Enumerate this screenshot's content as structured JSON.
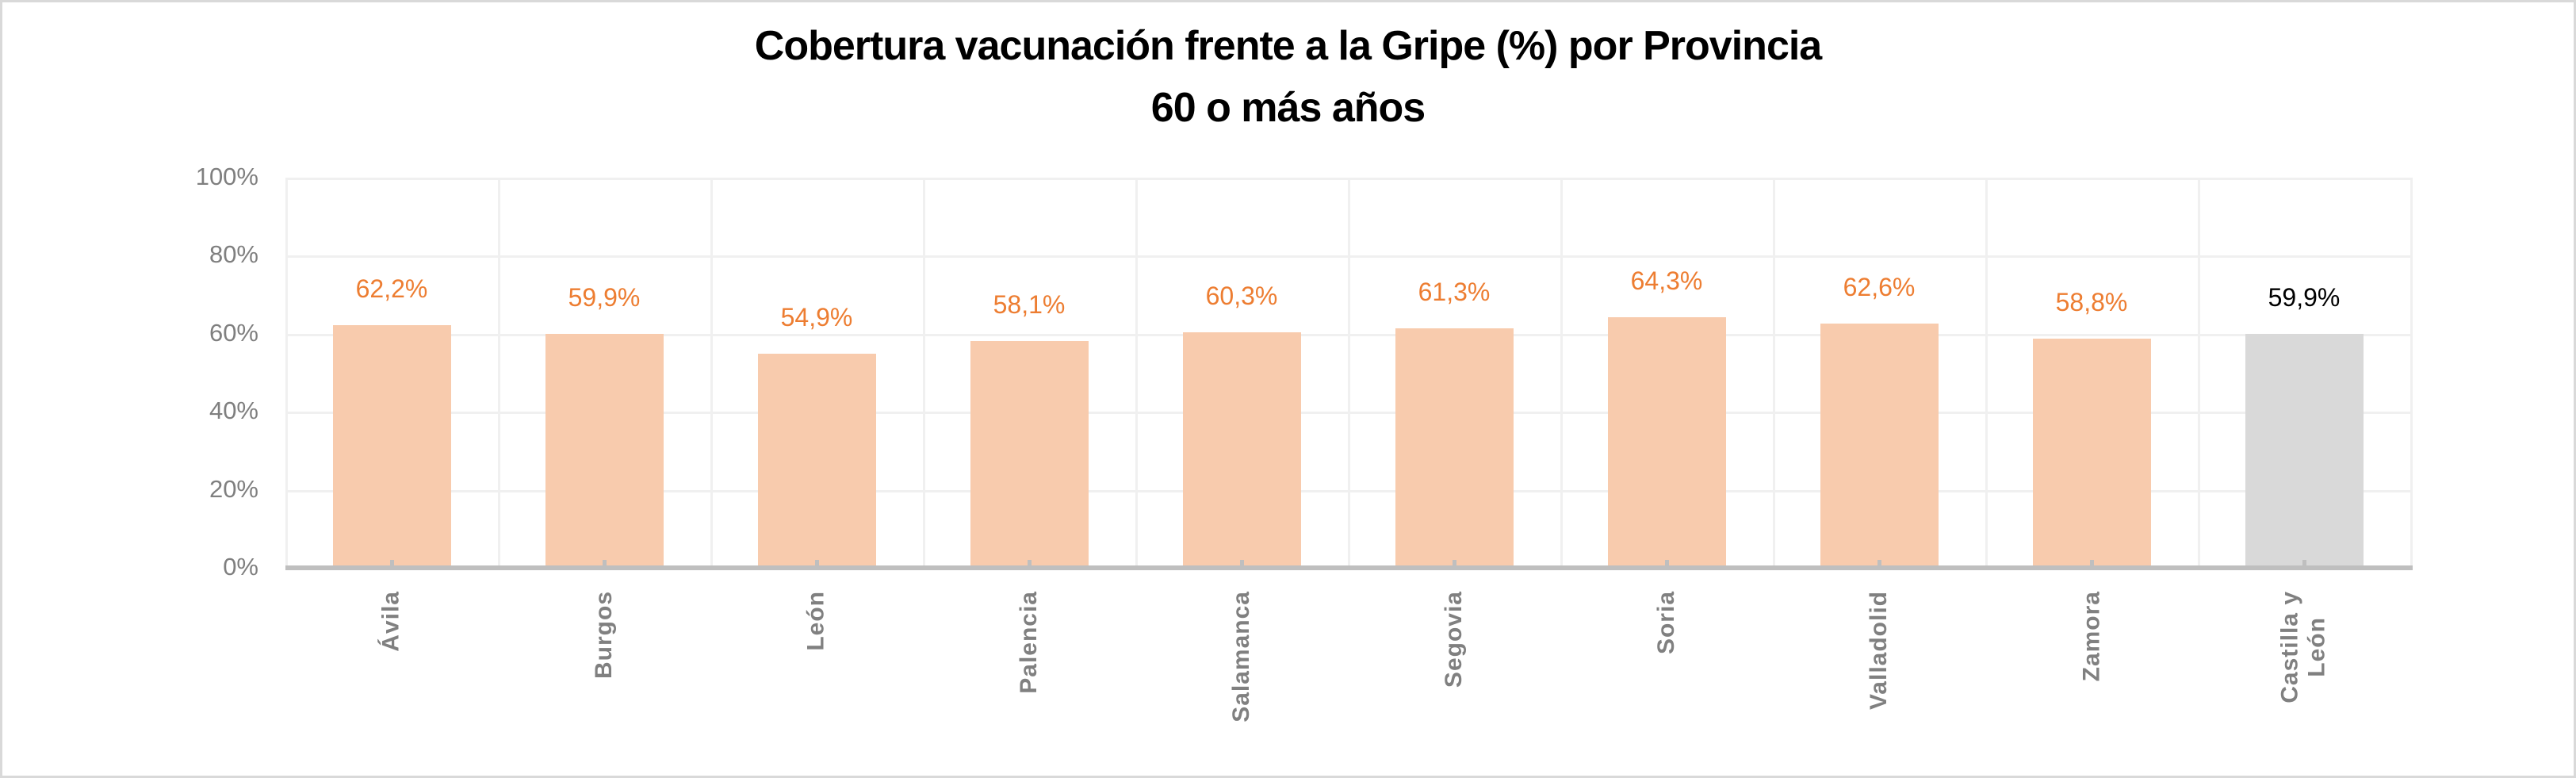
{
  "chart": {
    "title_line1": "Cobertura vacunación frente a la Gripe (%) por Provincia",
    "title_line2": "60 o más años",
    "y_ticks": [
      "100%",
      "80%",
      "60%",
      "40%",
      "20%",
      "0%"
    ],
    "colors": {
      "province_bar": "#f8cbad",
      "region_bar": "#d9d9d9",
      "province_label": "#ed7d31",
      "region_label": "#000000",
      "axis_line": "#bfbfbf",
      "gridline": "#f0f0f0",
      "axis_text": "#7f7f7f"
    },
    "bars": [
      {
        "category": "Ávila",
        "value": 62.2,
        "label": "62,2%",
        "kind": "province"
      },
      {
        "category": "Burgos",
        "value": 59.9,
        "label": "59,9%",
        "kind": "province"
      },
      {
        "category": "León",
        "value": 54.9,
        "label": "54,9%",
        "kind": "province"
      },
      {
        "category": "Palencia",
        "value": 58.1,
        "label": "58,1%",
        "kind": "province"
      },
      {
        "category": "Salamanca",
        "value": 60.3,
        "label": "60,3%",
        "kind": "province"
      },
      {
        "category": "Segovia",
        "value": 61.3,
        "label": "61,3%",
        "kind": "province"
      },
      {
        "category": "Soria",
        "value": 64.3,
        "label": "64,3%",
        "kind": "province"
      },
      {
        "category": "Valladolid",
        "value": 62.6,
        "label": "62,6%",
        "kind": "province"
      },
      {
        "category": "Zamora",
        "value": 58.8,
        "label": "58,8%",
        "kind": "province"
      },
      {
        "category": "Castilla y\nLeón",
        "value": 59.9,
        "label": "59,9%",
        "kind": "region"
      }
    ]
  },
  "chart_data": {
    "type": "bar",
    "title": "Cobertura vacunación frente a la Gripe (%) por Provincia — 60 o más años",
    "categories": [
      "Ávila",
      "Burgos",
      "León",
      "Palencia",
      "Salamanca",
      "Segovia",
      "Soria",
      "Valladolid",
      "Zamora",
      "Castilla y León"
    ],
    "values": [
      62.2,
      59.9,
      54.9,
      58.1,
      60.3,
      61.3,
      64.3,
      62.6,
      58.8,
      59.9
    ],
    "data_labels": [
      "62,2%",
      "59,9%",
      "54,9%",
      "58,1%",
      "60,3%",
      "61,3%",
      "64,3%",
      "62,6%",
      "58,8%",
      "59,9%"
    ],
    "xlabel": "",
    "ylabel": "",
    "ylim": [
      0,
      100
    ],
    "y_ticks": [
      0,
      20,
      40,
      60,
      80,
      100
    ],
    "y_tick_format": "percent",
    "grid": true,
    "legend": "none",
    "x_label_rotation": -90,
    "highlight": {
      "category": "Castilla y León",
      "color": "#d9d9d9",
      "note": "regional total shown in grey; provinces in light orange"
    }
  }
}
